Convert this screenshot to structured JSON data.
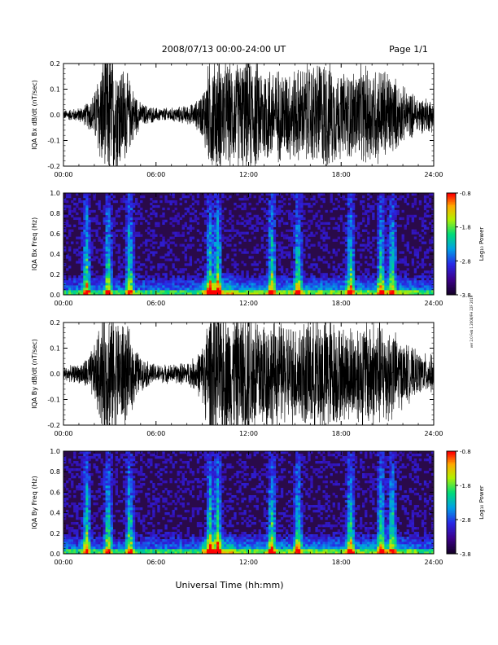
{
  "header": {
    "title": "2008/07/13  00:00-24:00 UT",
    "page": "Page 1/1"
  },
  "side_note": "ver 2.0 Feb 1 2008/FH 22F 2019",
  "xlabel_bottom": "Universal Time (hh:mm)",
  "colorbar": {
    "label": "Log₁₀ Power",
    "ticks": [
      "-0.8",
      "-1.8",
      "-2.8",
      "-3.8"
    ],
    "range": [
      -3.8,
      -0.8
    ]
  },
  "colors": {
    "background": "#ffffff",
    "trace": "#000000",
    "spec_bg": "#2a0a4a"
  },
  "chart_data": [
    {
      "type": "line",
      "panel": "bx-dbdt",
      "ylabel": "IQA Bx dB/dt (nT/sec)",
      "xlim": [
        0,
        24
      ],
      "ylim": [
        -0.2,
        0.2
      ],
      "xticks": [
        "00:00",
        "06:00",
        "12:00",
        "18:00",
        "24:00"
      ],
      "yticks": [
        "-0.2",
        "-0.1",
        "0.0",
        "0.1",
        "0.2"
      ],
      "envelope": {
        "x_hours": [
          0,
          1,
          1.5,
          2,
          2.5,
          3,
          3.5,
          4,
          4.5,
          5,
          6,
          7,
          8,
          8.5,
          9,
          9.5,
          10,
          11,
          12,
          13,
          14,
          15,
          16,
          17,
          18,
          19,
          20,
          21,
          22,
          23,
          24
        ],
        "amplitude": [
          0.02,
          0.03,
          0.05,
          0.1,
          0.25,
          0.3,
          0.25,
          0.2,
          0.12,
          0.05,
          0.03,
          0.03,
          0.04,
          0.05,
          0.1,
          0.25,
          0.25,
          0.22,
          0.25,
          0.22,
          0.2,
          0.2,
          0.22,
          0.25,
          0.18,
          0.2,
          0.22,
          0.2,
          0.12,
          0.08,
          0.07
        ]
      }
    },
    {
      "type": "heatmap",
      "panel": "bx-freq",
      "ylabel": "IQA Bx Freq (Hz)",
      "xlim": [
        0,
        24
      ],
      "ylim": [
        0,
        1.0
      ],
      "xticks": [
        "00:00",
        "06:00",
        "12:00",
        "18:00",
        "24:00"
      ],
      "yticks": [
        "0.0",
        "0.2",
        "0.4",
        "0.6",
        "0.8",
        "1.0"
      ],
      "zlabel": "Log₁₀ Power",
      "zlim": [
        -3.8,
        -0.8
      ],
      "bright_bursts_hours": [
        1.5,
        2.9,
        4.3,
        9.5,
        10.0,
        13.5,
        15.2,
        18.6,
        20.6,
        21.3
      ]
    },
    {
      "type": "line",
      "panel": "by-dbdt",
      "ylabel": "IQA By dB/dt (nT/sec)",
      "xlim": [
        0,
        24
      ],
      "ylim": [
        -0.2,
        0.2
      ],
      "xticks": [
        "00:00",
        "06:00",
        "12:00",
        "18:00",
        "24:00"
      ],
      "yticks": [
        "-0.2",
        "-0.1",
        "0.0",
        "0.1",
        "0.2"
      ],
      "envelope": {
        "x_hours": [
          0,
          1,
          1.5,
          2,
          2.5,
          3,
          3.5,
          4,
          4.5,
          5,
          6,
          7,
          8,
          8.5,
          9,
          9.5,
          10,
          11,
          12,
          13,
          14,
          15,
          16,
          17,
          18,
          19,
          20,
          21,
          22,
          23,
          24
        ],
        "amplitude": [
          0.03,
          0.04,
          0.07,
          0.12,
          0.25,
          0.3,
          0.25,
          0.22,
          0.15,
          0.07,
          0.04,
          0.04,
          0.05,
          0.07,
          0.12,
          0.3,
          0.3,
          0.25,
          0.3,
          0.25,
          0.22,
          0.22,
          0.25,
          0.28,
          0.2,
          0.22,
          0.25,
          0.22,
          0.14,
          0.09,
          0.08
        ]
      }
    },
    {
      "type": "heatmap",
      "panel": "by-freq",
      "ylabel": "IQA By Freq (Hz)",
      "xlim": [
        0,
        24
      ],
      "ylim": [
        0,
        1.0
      ],
      "xticks": [
        "00:00",
        "06:00",
        "12:00",
        "18:00",
        "24:00"
      ],
      "yticks": [
        "0.0",
        "0.2",
        "0.4",
        "0.6",
        "0.8",
        "1.0"
      ],
      "zlabel": "Log₁₀ Power",
      "zlim": [
        -3.8,
        -0.8
      ],
      "bright_bursts_hours": [
        1.5,
        2.9,
        4.3,
        9.5,
        10.0,
        13.5,
        15.2,
        18.6,
        20.6,
        21.3
      ]
    }
  ]
}
